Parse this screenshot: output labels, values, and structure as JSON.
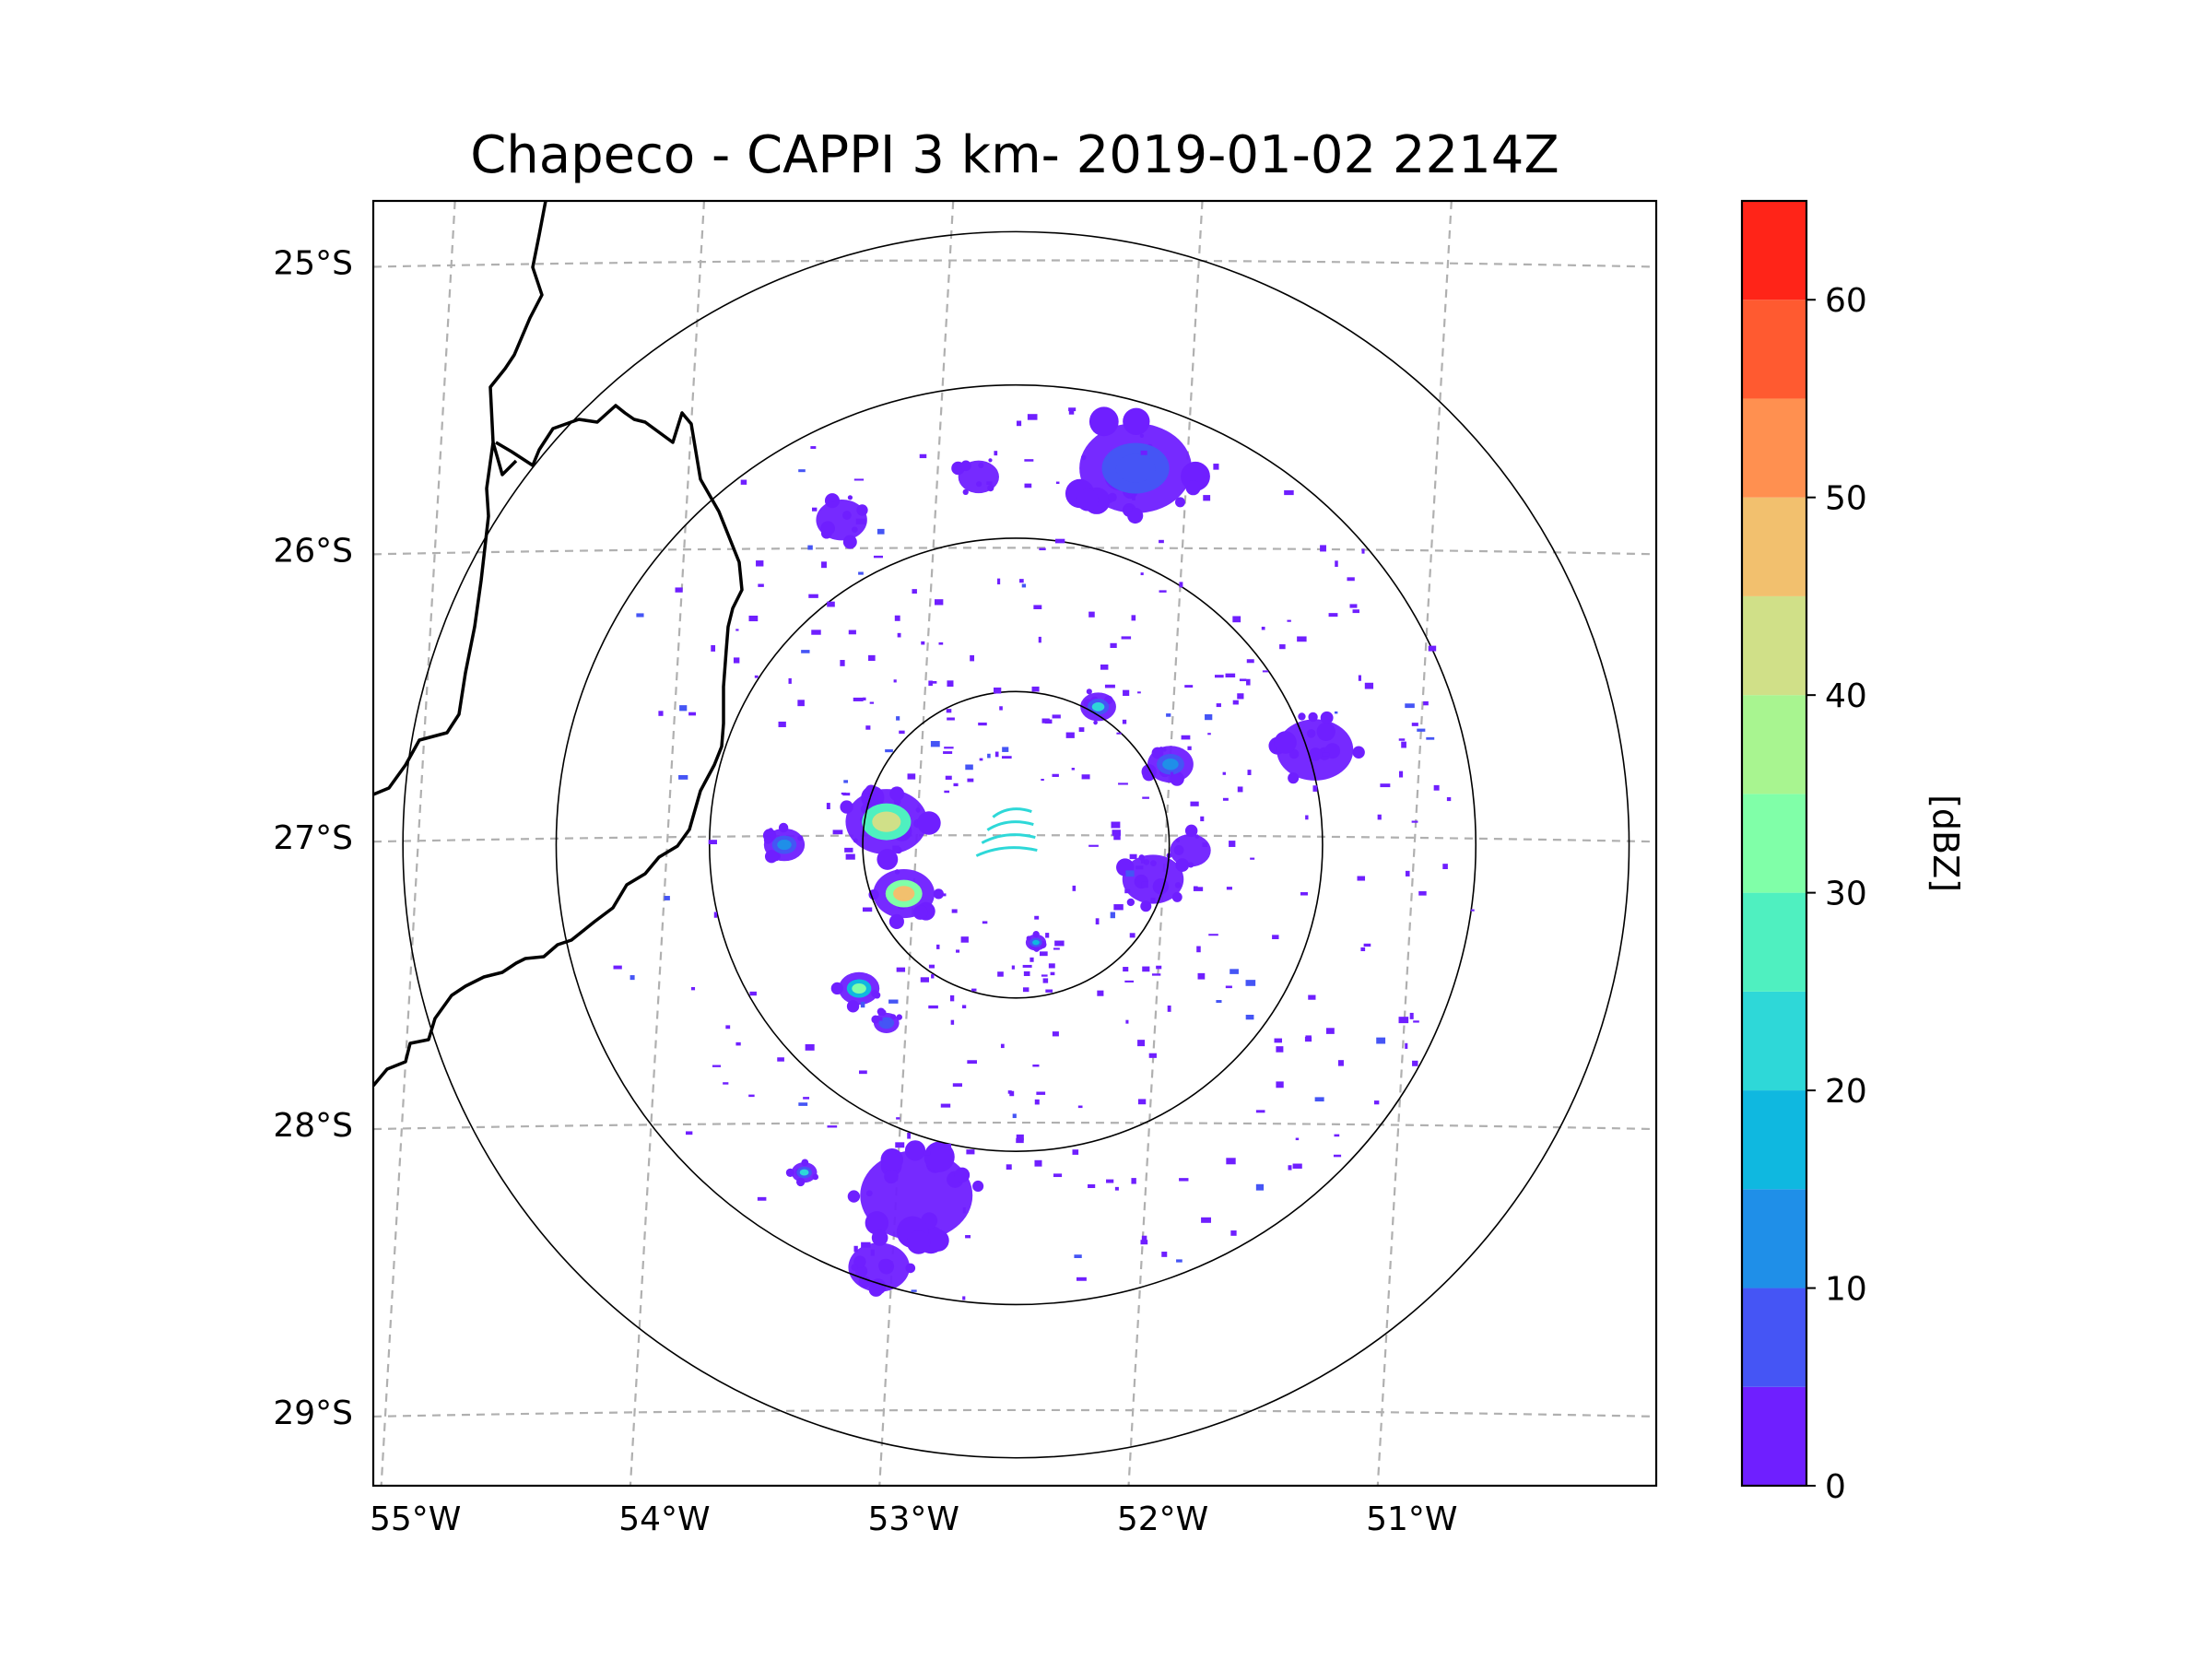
{
  "chart_data": {
    "type": "map",
    "title": "Chapeco - CAPPI 3 km- 2019-01-02 2214Z",
    "radar": {
      "center_lon": -52.6,
      "center_lat": -27.03,
      "range_rings_km": [
        60,
        120,
        180,
        240
      ]
    },
    "map_extent": {
      "lon": [
        -55.18,
        -50.03
      ],
      "lat": [
        -29.26,
        -24.79
      ]
    },
    "grid": true,
    "lat_ticks": [
      {
        "value": -25,
        "label": "25°S"
      },
      {
        "value": -26,
        "label": "26°S"
      },
      {
        "value": -27,
        "label": "27°S"
      },
      {
        "value": -28,
        "label": "28°S"
      },
      {
        "value": -29,
        "label": "29°S"
      }
    ],
    "lon_ticks": [
      {
        "value": -55,
        "label": "55°W"
      },
      {
        "value": -54,
        "label": "54°W"
      },
      {
        "value": -53,
        "label": "53°W"
      },
      {
        "value": -52,
        "label": "52°W"
      },
      {
        "value": -51,
        "label": "51°W"
      }
    ],
    "colorbar": {
      "label": "[dBZ]",
      "range": [
        0,
        65
      ],
      "ticks": [
        0,
        10,
        20,
        30,
        40,
        50,
        60
      ],
      "bins": [
        {
          "from": 0,
          "to": 5,
          "color": "#6f1fff"
        },
        {
          "from": 5,
          "to": 10,
          "color": "#4555f5"
        },
        {
          "from": 10,
          "to": 15,
          "color": "#1f8fe8"
        },
        {
          "from": 15,
          "to": 20,
          "color": "#0fb8e0"
        },
        {
          "from": 20,
          "to": 25,
          "color": "#2ed8d8"
        },
        {
          "from": 25,
          "to": 30,
          "color": "#4ff0c0"
        },
        {
          "from": 30,
          "to": 35,
          "color": "#80ffa8"
        },
        {
          "from": 35,
          "to": 40,
          "color": "#a8f590"
        },
        {
          "from": 40,
          "to": 45,
          "color": "#d0e088"
        },
        {
          "from": 45,
          "to": 50,
          "color": "#f2c06e"
        },
        {
          "from": 50,
          "to": 55,
          "color": "#ff9050"
        },
        {
          "from": 55,
          "to": 60,
          "color": "#ff5a30"
        },
        {
          "from": 60,
          "to": 65,
          "color": "#ff2418"
        }
      ]
    },
    "echoes": [
      {
        "name": "echo-cell-west-main",
        "lon": -53.12,
        "lat": -26.95,
        "r_km": 16,
        "dbz": 40
      },
      {
        "name": "echo-cell-west-tail",
        "lon": -53.05,
        "lat": -27.2,
        "r_km": 12,
        "dbz": 45
      },
      {
        "name": "echo-cell-west-small",
        "lon": -53.53,
        "lat": -27.03,
        "r_km": 8,
        "dbz": 10
      },
      {
        "name": "echo-cell-southwest",
        "lon": -53.23,
        "lat": -27.53,
        "r_km": 8,
        "dbz": 30
      },
      {
        "name": "echo-cell-southwest-2",
        "lon": -53.12,
        "lat": -27.65,
        "r_km": 5,
        "dbz": 5
      },
      {
        "name": "echo-cell-south-small",
        "lon": -53.45,
        "lat": -28.17,
        "r_km": 5,
        "dbz": 20
      },
      {
        "name": "echo-band-south",
        "lon": -53.0,
        "lat": -28.25,
        "r_km": 22,
        "dbz": 0
      },
      {
        "name": "echo-band-south-2",
        "lon": -53.15,
        "lat": -28.5,
        "r_km": 12,
        "dbz": 0
      },
      {
        "name": "echo-cluster-north",
        "lon": -52.12,
        "lat": -25.72,
        "r_km": 22,
        "dbz": 5
      },
      {
        "name": "echo-cell-north-small",
        "lon": -52.27,
        "lat": -26.55,
        "r_km": 7,
        "dbz": 20
      },
      {
        "name": "echo-cluster-east",
        "lon": -51.4,
        "lat": -26.7,
        "r_km": 15,
        "dbz": 0
      },
      {
        "name": "echo-cell-east",
        "lon": -51.98,
        "lat": -26.75,
        "r_km": 9,
        "dbz": 10
      },
      {
        "name": "echo-band-east-near",
        "lon": -52.05,
        "lat": -27.15,
        "r_km": 12,
        "dbz": 0
      },
      {
        "name": "echo-band-east-2",
        "lon": -51.9,
        "lat": -27.05,
        "r_km": 8,
        "dbz": 0
      },
      {
        "name": "echo-cell-center-south",
        "lon": -52.52,
        "lat": -27.37,
        "r_km": 4,
        "dbz": 15
      },
      {
        "name": "echo-scatter-nw",
        "lon": -53.3,
        "lat": -25.9,
        "r_km": 10,
        "dbz": 0
      },
      {
        "name": "echo-scatter-n",
        "lon": -52.75,
        "lat": -25.75,
        "r_km": 8,
        "dbz": 0
      }
    ]
  }
}
